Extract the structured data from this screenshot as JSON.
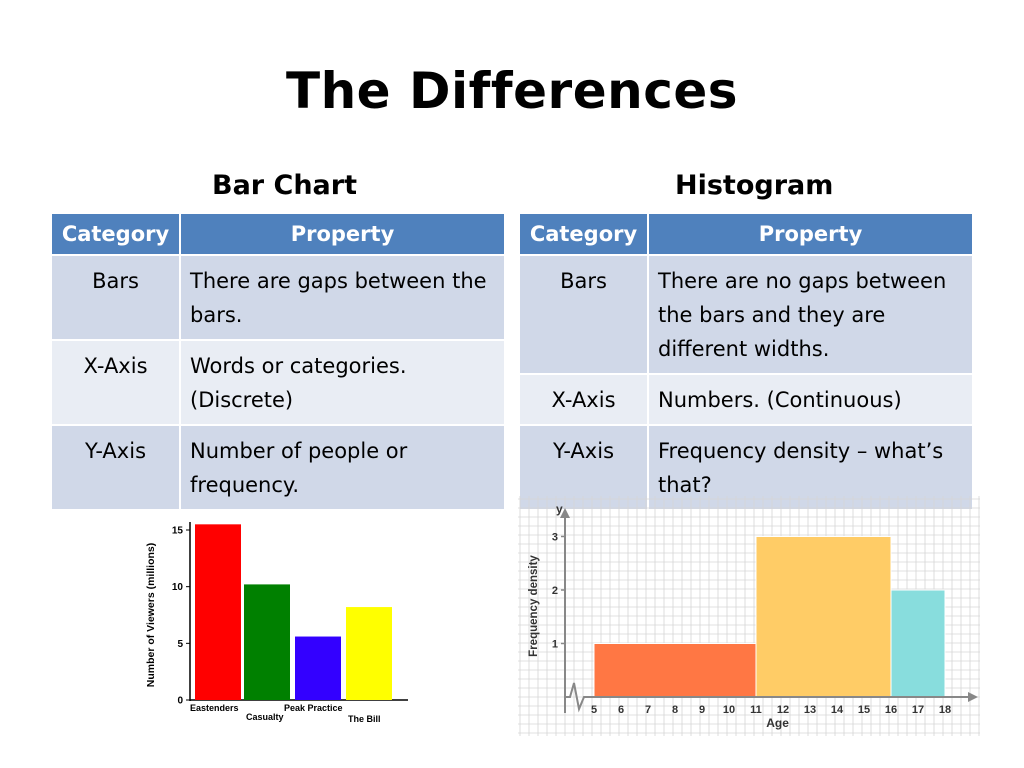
{
  "title": "The Differences",
  "bar_section": {
    "heading": "Bar Chart",
    "header": {
      "category": "Category",
      "property": "Property"
    },
    "rows": [
      {
        "category": "Bars",
        "property": "There are gaps between the bars."
      },
      {
        "category": "X-Axis",
        "property": "Words or categories. (Discrete)"
      },
      {
        "category": "Y-Axis",
        "property": "Number of people or frequency."
      }
    ]
  },
  "hist_section": {
    "heading": "Histogram",
    "header": {
      "category": "Category",
      "property": "Property"
    },
    "rows": [
      {
        "category": "Bars",
        "property": "There are no gaps between the bars and they are different widths."
      },
      {
        "category": "X-Axis",
        "property": "Numbers. (Continuous)"
      },
      {
        "category": "Y-Axis",
        "property": "Frequency density – what’s that?"
      }
    ]
  },
  "chart_data": [
    {
      "type": "bar",
      "categories": [
        "Eastenders",
        "Casualty",
        "Peak Practice",
        "The Bill"
      ],
      "values": [
        15.5,
        10.2,
        5.6,
        8.2
      ],
      "colors": [
        "#ff0000",
        "#008000",
        "#3300ff",
        "#ffff00"
      ],
      "ylabel": "Number of Viewers (millions)",
      "xlabel": "",
      "ylim": [
        0,
        15
      ],
      "yticks": [
        0,
        5,
        10,
        15
      ],
      "grid": false
    },
    {
      "type": "histogram",
      "bins": [
        {
          "x0": 5,
          "x1": 11,
          "value": 1,
          "color": "#ff7744"
        },
        {
          "x0": 11,
          "x1": 16,
          "value": 3,
          "color": "#ffcc66"
        },
        {
          "x0": 16,
          "x1": 18,
          "value": 2,
          "color": "#88dddd"
        }
      ],
      "xticks": [
        5,
        6,
        7,
        8,
        9,
        10,
        11,
        12,
        13,
        14,
        15,
        16,
        17,
        18
      ],
      "yticks": [
        1,
        2,
        3
      ],
      "xlabel": "Age",
      "ylabel": "Frequency density",
      "y_axis_letter": "y",
      "grid": true
    }
  ]
}
